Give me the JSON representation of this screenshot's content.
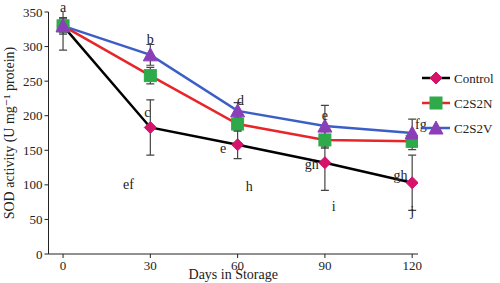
{
  "chart_data": {
    "type": "line",
    "x_label": "Days in Storage",
    "y_label": "SOD activity (U mg⁻¹ protein)",
    "x": [
      0,
      30,
      60,
      90,
      120
    ],
    "xlim": [
      -5,
      122
    ],
    "xticks": [
      0,
      30,
      60,
      90,
      120
    ],
    "ylim": [
      0,
      350
    ],
    "yticks": [
      0,
      50,
      100,
      150,
      200,
      250,
      300,
      350
    ],
    "grid": false,
    "legend": "right",
    "series": [
      {
        "name": "Control",
        "color": "#000000",
        "marker": "diamond",
        "line_style": "solid",
        "values": [
          330,
          183,
          158,
          132,
          103
        ],
        "errors": [
          35,
          40,
          20,
          40,
          40
        ]
      },
      {
        "name": "C2S2N",
        "color": "#e8262a",
        "marker": "square",
        "line_style": "solid",
        "values": [
          330,
          258,
          188,
          165,
          163
        ],
        "errors": [
          10,
          12,
          10,
          12,
          12
        ]
      },
      {
        "name": "C2S2V",
        "color": "#3b5fc6",
        "marker": "triangle",
        "line_style": "solid",
        "values": [
          330,
          288,
          207,
          185,
          175
        ],
        "errors": [
          12,
          15,
          12,
          30,
          20
        ]
      }
    ],
    "annotations": [
      {
        "x": 0,
        "y": 357,
        "text": "a"
      },
      {
        "x": 30,
        "y": 310,
        "text": "b"
      },
      {
        "x": 29,
        "y": 205,
        "text": "c"
      },
      {
        "x": 22.5,
        "y": 100,
        "text": "ef"
      },
      {
        "x": 61,
        "y": 222,
        "text": "d"
      },
      {
        "x": 55,
        "y": 153,
        "text": "e"
      },
      {
        "x": 64,
        "y": 98,
        "text": "h"
      },
      {
        "x": 90,
        "y": 200,
        "text": "e"
      },
      {
        "x": 85.5,
        "y": 130,
        "text": "gh"
      },
      {
        "x": 93,
        "y": 69,
        "text": "i"
      },
      {
        "x": 123,
        "y": 188,
        "text": "fg"
      },
      {
        "x": 116,
        "y": 113,
        "text": "gh"
      },
      {
        "x": 120,
        "y": 61,
        "text": "j"
      }
    ]
  }
}
